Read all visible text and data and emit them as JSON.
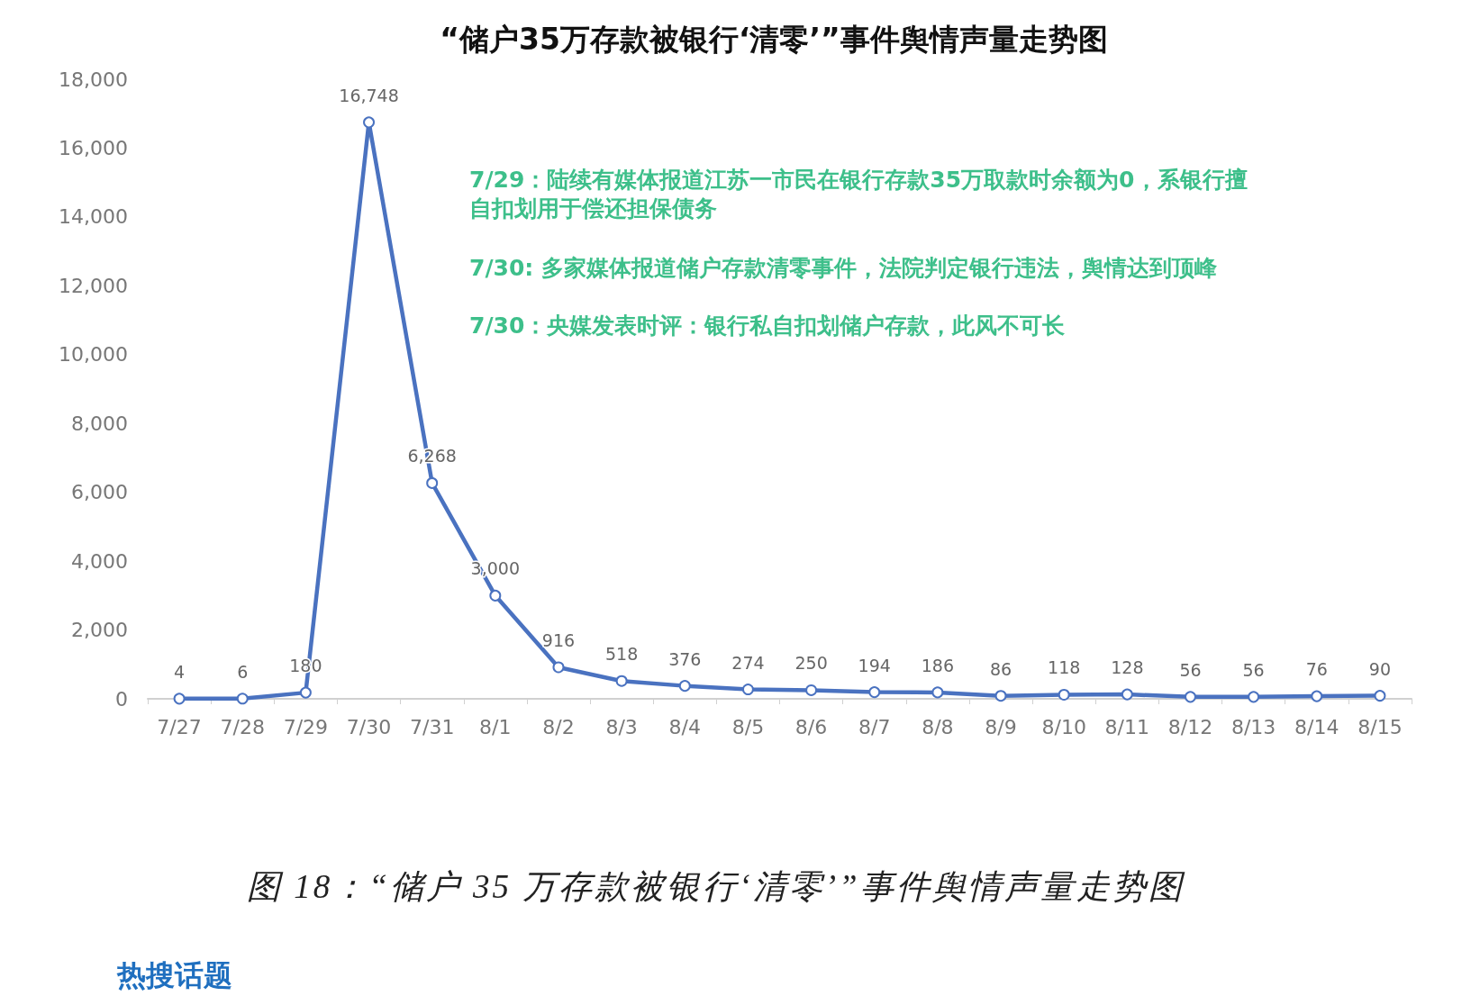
{
  "chart_data": {
    "type": "line",
    "title": "“储户35万存款被银行‘清零’”事件舆情声量走势图",
    "categories": [
      "7/27",
      "7/28",
      "7/29",
      "7/30",
      "7/31",
      "8/1",
      "8/2",
      "8/3",
      "8/4",
      "8/5",
      "8/6",
      "8/7",
      "8/8",
      "8/9",
      "8/10",
      "8/11",
      "8/12",
      "8/13",
      "8/14",
      "8/15"
    ],
    "values": [
      4,
      6,
      180,
      16748,
      6268,
      3000,
      916,
      518,
      376,
      274,
      250,
      194,
      186,
      86,
      118,
      128,
      56,
      56,
      76,
      90
    ],
    "value_labels": [
      "4",
      "6",
      "180",
      "16,748",
      "6,268",
      "3,000",
      "916",
      "518",
      "376",
      "274",
      "250",
      "194",
      "186",
      "86",
      "118",
      "128",
      "56",
      "56",
      "76",
      "90"
    ],
    "color": "#4a72c0",
    "ylim": [
      0,
      18000
    ],
    "yticks": [
      0,
      {
        "value": 2000,
        "label": "2,000"
      },
      {
        "value": 4000,
        "label": "4,000"
      },
      {
        "value": 6000,
        "label": "6,000"
      },
      {
        "value": 8000,
        "label": "8,000"
      },
      {
        "value": 10000,
        "label": "10,000"
      },
      {
        "value": 12000,
        "label": "12,000"
      },
      {
        "value": 14000,
        "label": "14,000"
      },
      {
        "value": 16000,
        "label": "16,000"
      },
      {
        "value": 18000,
        "label": "18,000"
      }
    ],
    "marker": "circle",
    "line_style": "solid",
    "annotations": [
      "7/29：陆续有媒体报道江苏一市民在银行存款35万取款时余额为0，系银行擅自扣划用于偿还担保债务",
      "7/30: 多家媒体报道储户存款清零事件，法院判定银行违法，舆情达到顶峰",
      "7/30：央媒发表时评：银行私自扣划储户存款，此风不可长",
      "图 18：“储户 35 万存款被银行‘清零’”事件舆情声量走势图",
      "热搜话题"
    ]
  }
}
